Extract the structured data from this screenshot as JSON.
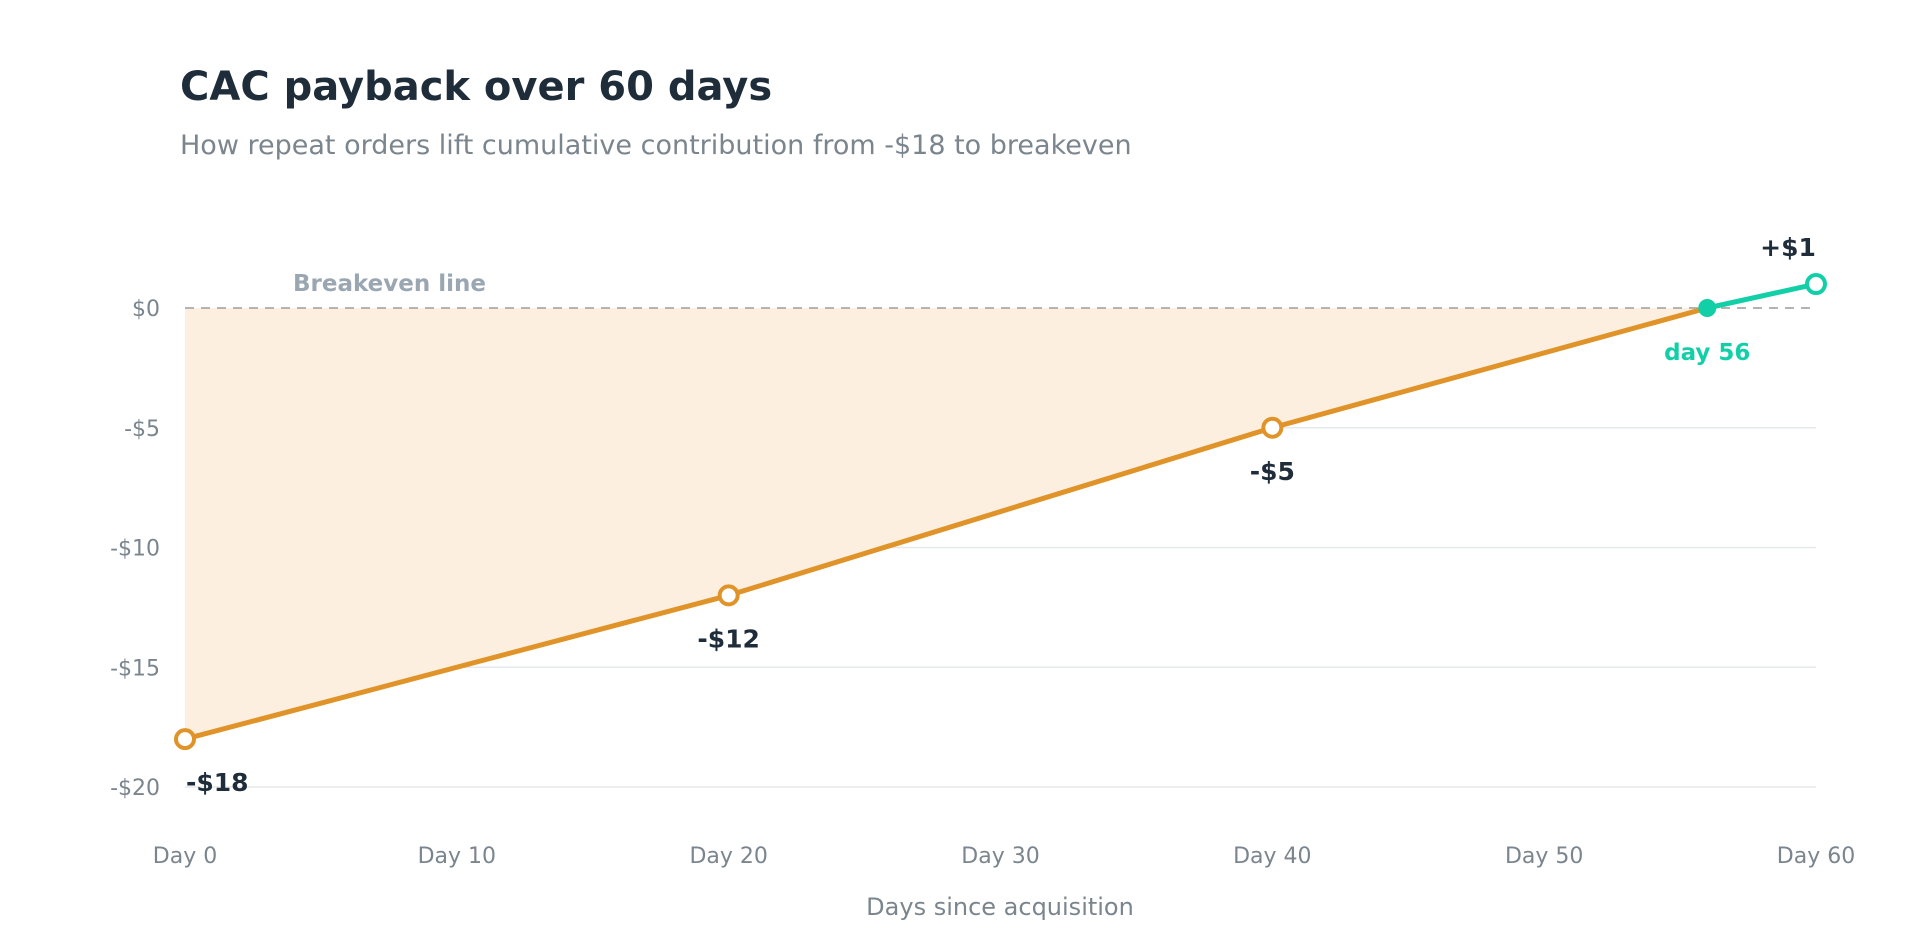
{
  "chart_data": {
    "type": "line",
    "title": "CAC payback over 60 days",
    "subtitle": "How repeat orders lift cumulative contribution from -$18 to breakeven",
    "xlabel": "Days since acquisition",
    "ylabel": "",
    "xlim": [
      0,
      60
    ],
    "ylim": [
      -20,
      0
    ],
    "x_ticks": [
      0,
      10,
      20,
      30,
      40,
      50,
      60
    ],
    "x_tick_labels": [
      "Day 0",
      "Day 10",
      "Day 20",
      "Day 30",
      "Day 40",
      "Day 50",
      "Day 60"
    ],
    "y_ticks": [
      0,
      -5,
      -10,
      -15,
      -20
    ],
    "y_tick_labels": [
      "$0",
      "-$5",
      "-$10",
      "-$15",
      "-$20"
    ],
    "grid": true,
    "series": [
      {
        "points": [
          {
            "x": 0,
            "y": -18,
            "label": "-$18"
          },
          {
            "x": 20,
            "y": -12,
            "label": "-$12"
          },
          {
            "x": 40,
            "y": -5,
            "label": "-$5"
          },
          {
            "x": 56,
            "y": 0
          },
          {
            "x": 60,
            "y": 1,
            "label": "+$1"
          }
        ]
      }
    ],
    "reference_line": {
      "y": 0,
      "label": "Breakeven line"
    },
    "payback_point": {
      "x": 56,
      "y": 0,
      "label": "day 56"
    },
    "colors": {
      "pre_payback_line": "#e09329",
      "post_payback_line": "#13cfa8",
      "area_fill": "#fcefdf",
      "grid": "#e6e9ec",
      "reference_line": "#b3b3b3"
    }
  }
}
